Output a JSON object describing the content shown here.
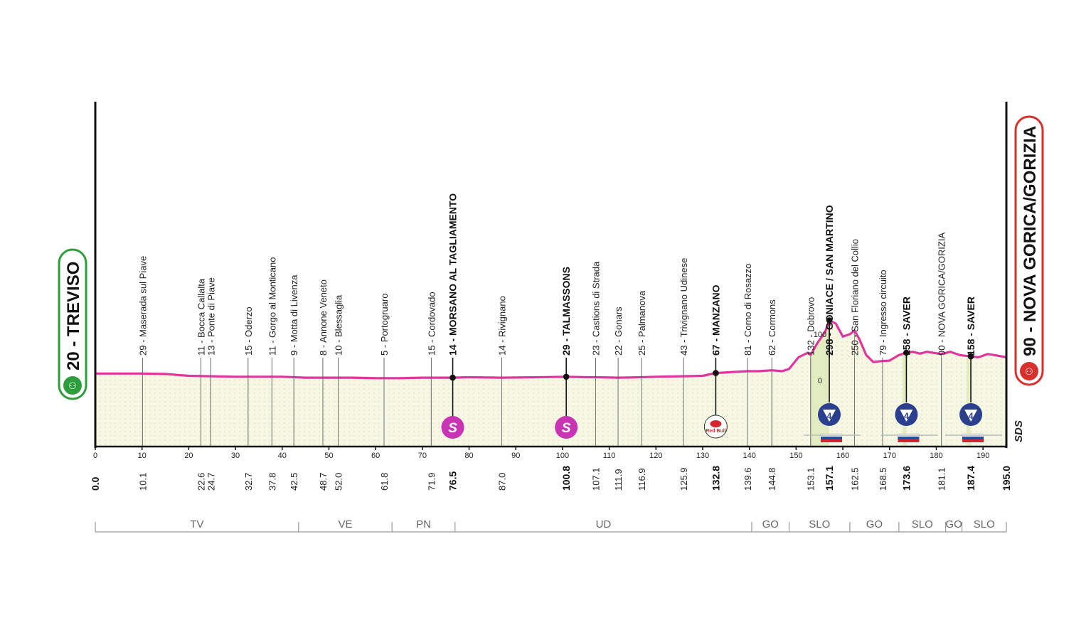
{
  "chart_data": {
    "type": "area",
    "start": {
      "altitude": "20",
      "name": "TREVISO",
      "color": "#2e9e3c"
    },
    "finish": {
      "altitude": "90",
      "name": "NOVA GORICA/GORIZIA",
      "color": "#d6312d"
    },
    "xlim": [
      0,
      195
    ],
    "x_ticks": [
      0,
      10,
      20,
      30,
      40,
      50,
      60,
      70,
      80,
      90,
      100,
      110,
      120,
      130,
      140,
      150,
      160,
      170,
      180,
      190
    ],
    "y_ticks": [
      "100",
      "0"
    ],
    "profile": {
      "x": [
        0,
        5,
        10,
        15,
        20,
        30,
        40,
        45,
        50,
        55,
        60,
        65,
        70,
        76.5,
        80,
        87,
        95,
        100.8,
        105,
        107.1,
        111.9,
        116.9,
        120,
        125.9,
        130,
        132.8,
        136,
        139.6,
        142,
        144.8,
        147,
        148.5,
        150.5,
        152.5,
        153.1,
        154.5,
        156.2,
        157.1,
        158.5,
        160,
        161.5,
        162.5,
        163.5,
        165,
        166.5,
        168.5,
        170,
        172,
        173.6,
        175,
        176.5,
        178,
        181.1,
        183,
        185,
        187.4,
        189,
        191,
        193,
        195
      ],
      "altitude": [
        15,
        15,
        15,
        14,
        10,
        8,
        8,
        6,
        6,
        6,
        5,
        5,
        6,
        6,
        7,
        6,
        7,
        8,
        7,
        7,
        6,
        7,
        8,
        9,
        10,
        16,
        18,
        20,
        20,
        22,
        20,
        25,
        50,
        60,
        55,
        80,
        105,
        130,
        123,
        95,
        100,
        108,
        90,
        55,
        40,
        42,
        43,
        55,
        60,
        62,
        58,
        62,
        57,
        62,
        55,
        52,
        50,
        57,
        54,
        50
      ]
    },
    "waypoints": [
      {
        "km": "0.0",
        "x": 0,
        "label": "",
        "bold": true
      },
      {
        "km": "10.1",
        "x": 10.1,
        "label": "29 - Maserada sul Piave"
      },
      {
        "km": "22.6",
        "x": 22.6,
        "label": "11 - Bocca Callalta"
      },
      {
        "km": "24.7",
        "x": 24.7,
        "label": "13 - Ponte di Piave"
      },
      {
        "km": "32.7",
        "x": 32.7,
        "label": "15 - Oderzo"
      },
      {
        "km": "37.8",
        "x": 37.8,
        "label": "11 - Gorgo al Monticano"
      },
      {
        "km": "42.5",
        "x": 42.5,
        "label": "9 - Motta di Livenza"
      },
      {
        "km": "48.7",
        "x": 48.7,
        "label": "8 - Annone Veneto"
      },
      {
        "km": "52.0",
        "x": 52.0,
        "label": "10 - Blessaglia"
      },
      {
        "km": "61.8",
        "x": 61.8,
        "label": "5 - Portogruaro"
      },
      {
        "km": "71.9",
        "x": 71.9,
        "label": "15 - Cordovado"
      },
      {
        "km": "76.5",
        "x": 76.5,
        "label": "14 - MORSANO AL TAGLIAMENTO",
        "bold": true
      },
      {
        "km": "87.0",
        "x": 87.0,
        "label": "14 - Rivignano"
      },
      {
        "km": "100.8",
        "x": 100.8,
        "label": "29 - TALMASSONS",
        "bold": true
      },
      {
        "km": "107.1",
        "x": 107.1,
        "label": "23 - Castions di Strada"
      },
      {
        "km": "111.9",
        "x": 111.9,
        "label": "22 - Gonars"
      },
      {
        "km": "116.9",
        "x": 116.9,
        "label": "25 - Palmanova"
      },
      {
        "km": "125.9",
        "x": 125.9,
        "label": "43 - Trivignano Udinese"
      },
      {
        "km": "132.8",
        "x": 132.8,
        "label": "67 - MANZANO",
        "bold": true
      },
      {
        "km": "139.6",
        "x": 139.6,
        "label": "81 - Corno di Rosazzo"
      },
      {
        "km": "144.8",
        "x": 144.8,
        "label": "62 - Cormons"
      },
      {
        "km": "153.1",
        "x": 153.1,
        "label": "132 - Dobrovo"
      },
      {
        "km": "157.1",
        "x": 157.1,
        "label": "298 - GONIACE / SAN MARTINO",
        "bold": true
      },
      {
        "km": "162.5",
        "x": 162.5,
        "label": "250 - San Floriano del Collio"
      },
      {
        "km": "168.5",
        "x": 168.5,
        "label": "79 - Ingresso circuito"
      },
      {
        "km": "173.6",
        "x": 173.6,
        "label": "158 - SAVER",
        "bold": true
      },
      {
        "km": "181.1",
        "x": 181.1,
        "label": "90 - NOVA GORICA/GORIZIA"
      },
      {
        "km": "187.4",
        "x": 187.4,
        "label": "158 - SAVER",
        "bold": true
      },
      {
        "km": "195.0",
        "x": 195.0,
        "label": "",
        "bold": true
      }
    ],
    "markers": [
      {
        "type": "sprint",
        "x": 76.5,
        "symbol": "S"
      },
      {
        "type": "sprint",
        "x": 100.8,
        "symbol": "S"
      },
      {
        "type": "redbull",
        "x": 132.8,
        "symbol": "Red Bull"
      },
      {
        "type": "kom",
        "x": 157.1,
        "symbol": "4"
      },
      {
        "type": "kom",
        "x": 173.6,
        "symbol": "4"
      },
      {
        "type": "kom",
        "x": 187.4,
        "symbol": "4"
      }
    ],
    "provinces": [
      {
        "name": "TV",
        "from": 0,
        "to": 43.5
      },
      {
        "name": "VE",
        "from": 43.5,
        "to": 63.5
      },
      {
        "name": "PN",
        "from": 63.5,
        "to": 77
      },
      {
        "name": "UD",
        "from": 77,
        "to": 140.5
      },
      {
        "name": "GO",
        "from": 140.5,
        "to": 148.5
      },
      {
        "name": "SLO",
        "from": 148.5,
        "to": 161.5
      },
      {
        "name": "GO",
        "from": 161.5,
        "to": 172
      },
      {
        "name": "SLO",
        "from": 172,
        "to": 182
      },
      {
        "name": "GO",
        "from": 182,
        "to": 185.5
      },
      {
        "name": "SLO",
        "from": 185.5,
        "to": 195
      }
    ],
    "brand": "SDS",
    "colors": {
      "profile": "#e0359c",
      "fill": "#f6f8e4",
      "climb_fill": "#e2ecc0",
      "axis": "#111111",
      "sprint": "#c934b5",
      "kom": "#2b3f8f"
    }
  }
}
